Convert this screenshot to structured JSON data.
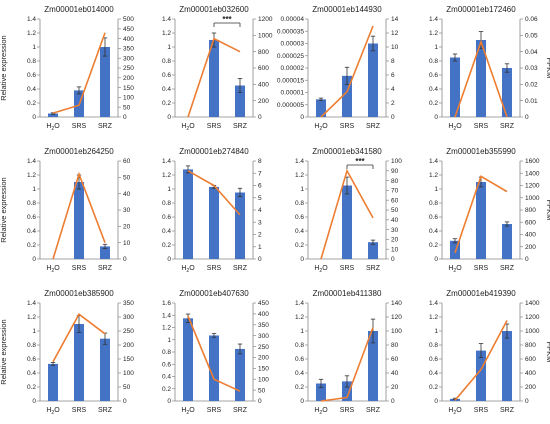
{
  "figure": {
    "categories": [
      "H2O",
      "SRS",
      "SRZ"
    ],
    "left_axis_label": "Relative expression",
    "right_axis_label": "FPKM",
    "significance_label": "***",
    "bar_color": "#4472C4",
    "line_color": "#ED7D31"
  },
  "chart_data": [
    {
      "type": "bar",
      "title": "Zm00001eb014000",
      "ylabel": "Relative expression",
      "y2label": "",
      "ylim": [
        0,
        1.4
      ],
      "yticks": [
        0,
        0.2,
        0.4,
        0.6,
        0.8,
        1,
        1.2,
        1.4
      ],
      "ytick_labels": [
        "0",
        "0.2",
        "0.4",
        "0.6",
        "0.8",
        "1",
        "1.2",
        "1.4"
      ],
      "y2lim": [
        0,
        500
      ],
      "y2ticks": [
        0,
        50,
        100,
        150,
        200,
        250,
        300,
        350,
        400,
        450,
        500
      ],
      "series": [
        {
          "values": [
            0.05,
            0.38,
            1.0
          ],
          "errors": [
            0.01,
            0.05,
            0.13
          ]
        },
        {
          "type": "line",
          "values": [
            20,
            60,
            430
          ]
        }
      ],
      "significance": null
    },
    {
      "type": "bar",
      "title": "Zm00001eb032600",
      "ylabel": "",
      "y2label": "",
      "ylim": [
        0,
        1.4
      ],
      "yticks": [
        0,
        0.2,
        0.4,
        0.6,
        0.8,
        1,
        1.2,
        1.4
      ],
      "ytick_labels": [
        "0",
        "0.2",
        "0.4",
        "0.6",
        "0.8",
        "1",
        "1.2",
        "1.4"
      ],
      "y2lim": [
        0,
        1200
      ],
      "y2ticks": [
        0,
        200,
        400,
        600,
        800,
        1000,
        1200
      ],
      "series": [
        {
          "values": [
            0,
            1.1,
            0.45
          ],
          "errors": [
            0,
            0.1,
            0.1
          ]
        },
        {
          "type": "line",
          "values": [
            0,
            960,
            800
          ]
        }
      ],
      "significance": {
        "from": 1,
        "to": 2,
        "label": "***"
      }
    },
    {
      "type": "bar",
      "title": "Zm00001eb144930",
      "ylabel": "",
      "y2label": "",
      "ylim": [
        0,
        4e-05
      ],
      "yticks": [
        0,
        5e-06,
        1e-05,
        1.5e-05,
        2e-05,
        2.5e-05,
        3e-05,
        3.5e-05,
        4e-05
      ],
      "ytick_labels": [
        "0",
        "0.000005",
        "0.00001",
        "0.000015",
        "0.00002",
        "0.000025",
        "0.00003",
        "0.000035",
        "0.00004"
      ],
      "y2lim": [
        0,
        14
      ],
      "y2ticks": [
        0,
        2,
        4,
        6,
        8,
        10,
        12,
        14
      ],
      "series": [
        {
          "values": [
            7.2e-06,
            1.68e-05,
            3e-05
          ],
          "errors": [
            5e-07,
            3.5e-06,
            3e-06
          ]
        },
        {
          "type": "line",
          "values": [
            0,
            3.6,
            13
          ]
        }
      ],
      "significance": null
    },
    {
      "type": "bar",
      "title": "Zm00001eb172460",
      "ylabel": "",
      "y2label": "FPKM",
      "ylim": [
        0,
        1.4
      ],
      "yticks": [
        0,
        0.2,
        0.4,
        0.6,
        0.8,
        1,
        1.2,
        1.4
      ],
      "ytick_labels": [
        "0",
        "0.2",
        "0.4",
        "0.6",
        "0.8",
        "1",
        "1.2",
        "1.4"
      ],
      "y2lim": [
        0,
        0.06
      ],
      "y2ticks": [
        0,
        0.01,
        0.02,
        0.03,
        0.04,
        0.05,
        0.06
      ],
      "series": [
        {
          "values": [
            0.85,
            1.1,
            0.7
          ],
          "errors": [
            0.05,
            0.12,
            0.06
          ]
        },
        {
          "type": "line",
          "values": [
            0,
            0.046,
            0
          ]
        }
      ],
      "significance": null
    },
    {
      "type": "bar",
      "title": "Zm00001eb264250",
      "ylabel": "Relative expression",
      "y2label": "",
      "ylim": [
        0,
        1.4
      ],
      "yticks": [
        0,
        0.2,
        0.4,
        0.6,
        0.8,
        1,
        1.2,
        1.4
      ],
      "ytick_labels": [
        "0",
        "0.2",
        "0.4",
        "0.6",
        "0.8",
        "1",
        "1.2",
        "1.4"
      ],
      "y2lim": [
        0,
        60
      ],
      "y2ticks": [
        0,
        10,
        20,
        30,
        40,
        50,
        60
      ],
      "series": [
        {
          "values": [
            0,
            1.1,
            0.18
          ],
          "errors": [
            0,
            0.1,
            0.03
          ]
        },
        {
          "type": "line",
          "values": [
            0,
            52,
            10
          ]
        }
      ],
      "significance": null
    },
    {
      "type": "bar",
      "title": "Zm00001eb274840",
      "ylabel": "",
      "y2label": "",
      "ylim": [
        0,
        1.4
      ],
      "yticks": [
        0,
        0.2,
        0.4,
        0.6,
        0.8,
        1,
        1.2,
        1.4
      ],
      "ytick_labels": [
        "0",
        "0.2",
        "0.4",
        "0.6",
        "0.8",
        "1",
        "1.2",
        "1.4"
      ],
      "y2lim": [
        0,
        8
      ],
      "y2ticks": [
        0,
        1,
        2,
        3,
        4,
        5,
        6,
        7,
        8
      ],
      "series": [
        {
          "values": [
            1.28,
            1.03,
            0.95
          ],
          "errors": [
            0.05,
            0.02,
            0.06
          ]
        },
        {
          "type": "line",
          "values": [
            7.2,
            6.0,
            3.6
          ]
        }
      ],
      "significance": null
    },
    {
      "type": "bar",
      "title": "Zm00001eb341580",
      "ylabel": "",
      "y2label": "",
      "ylim": [
        0,
        1.4
      ],
      "yticks": [
        0,
        0.2,
        0.4,
        0.6,
        0.8,
        1,
        1.2,
        1.4
      ],
      "ytick_labels": [
        "0",
        "0.2",
        "0.4",
        "0.6",
        "0.8",
        "1",
        "1.2",
        "1.4"
      ],
      "y2lim": [
        0,
        100
      ],
      "y2ticks": [
        0,
        10,
        20,
        30,
        40,
        50,
        60,
        70,
        80,
        90,
        100
      ],
      "series": [
        {
          "values": [
            0,
            1.05,
            0.24
          ],
          "errors": [
            0,
            0.12,
            0.03
          ]
        },
        {
          "type": "line",
          "values": [
            0,
            90,
            42
          ]
        }
      ],
      "significance": {
        "from": 1,
        "to": 2,
        "label": "***"
      }
    },
    {
      "type": "bar",
      "title": "Zm00001eb355990",
      "ylabel": "",
      "y2label": "FPKM",
      "ylim": [
        0,
        1.4
      ],
      "yticks": [
        0,
        0.2,
        0.4,
        0.6,
        0.8,
        1,
        1.2,
        1.4
      ],
      "ytick_labels": [
        "0",
        "0.2",
        "0.4",
        "0.6",
        "0.8",
        "1",
        "1.2",
        "1.4"
      ],
      "y2lim": [
        0,
        1600
      ],
      "y2ticks": [
        0,
        200,
        400,
        600,
        800,
        1000,
        1200,
        1400,
        1600
      ],
      "series": [
        {
          "values": [
            0.26,
            1.1,
            0.5
          ],
          "errors": [
            0.03,
            0.07,
            0.03
          ]
        },
        {
          "type": "line",
          "values": [
            100,
            1350,
            1100
          ]
        }
      ],
      "significance": null
    },
    {
      "type": "bar",
      "title": "Zm00001eb385900",
      "ylabel": "Relative expression",
      "y2label": "",
      "ylim": [
        0,
        1.4
      ],
      "yticks": [
        0,
        0.2,
        0.4,
        0.6,
        0.8,
        1,
        1.2,
        1.4
      ],
      "ytick_labels": [
        "0",
        "0.2",
        "0.4",
        "0.6",
        "0.8",
        "1",
        "1.2",
        "1.4"
      ],
      "y2lim": [
        0,
        350
      ],
      "y2ticks": [
        0,
        50,
        100,
        150,
        200,
        250,
        300,
        350
      ],
      "series": [
        {
          "values": [
            0.53,
            1.1,
            0.89
          ],
          "errors": [
            0.02,
            0.12,
            0.08
          ]
        },
        {
          "type": "line",
          "values": [
            140,
            310,
            240
          ]
        }
      ],
      "significance": null
    },
    {
      "type": "bar",
      "title": "Zm00001eb407630",
      "ylabel": "",
      "y2label": "",
      "ylim": [
        0,
        1.6
      ],
      "yticks": [
        0,
        0.2,
        0.4,
        0.6,
        0.8,
        1,
        1.2,
        1.4,
        1.6
      ],
      "ytick_labels": [
        "0",
        "0.2",
        "0.4",
        "0.6",
        "0.8",
        "1",
        "1.2",
        "1.4",
        "1.6"
      ],
      "y2lim": [
        0,
        450
      ],
      "y2ticks": [
        0,
        50,
        100,
        150,
        200,
        250,
        300,
        350,
        400,
        450
      ],
      "series": [
        {
          "values": [
            1.35,
            1.07,
            0.85
          ],
          "errors": [
            0.07,
            0.03,
            0.08
          ]
        },
        {
          "type": "line",
          "values": [
            390,
            100,
            45
          ]
        }
      ],
      "significance": null
    },
    {
      "type": "bar",
      "title": "Zm00001eb411380",
      "ylabel": "",
      "y2label": "",
      "ylim": [
        0,
        1.4
      ],
      "yticks": [
        0,
        0.2,
        0.4,
        0.6,
        0.8,
        1,
        1.2,
        1.4
      ],
      "ytick_labels": [
        "0",
        "0.2",
        "0.4",
        "0.6",
        "0.8",
        "1",
        "1.2",
        "1.4"
      ],
      "y2lim": [
        0,
        140
      ],
      "y2ticks": [
        0,
        20,
        40,
        60,
        80,
        100,
        120,
        140
      ],
      "series": [
        {
          "values": [
            0.25,
            0.28,
            1.0
          ],
          "errors": [
            0.06,
            0.08,
            0.17
          ]
        },
        {
          "type": "line",
          "values": [
            0,
            5,
            105
          ]
        }
      ],
      "significance": null
    },
    {
      "type": "bar",
      "title": "Zm00001eb419390",
      "ylabel": "",
      "y2label": "FPKM",
      "ylim": [
        0,
        1.4
      ],
      "yticks": [
        0,
        0.2,
        0.4,
        0.6,
        0.8,
        1,
        1.2,
        1.4
      ],
      "ytick_labels": [
        "0",
        "0.2",
        "0.4",
        "0.6",
        "0.8",
        "1",
        "1.2",
        "1.4"
      ],
      "y2lim": [
        0,
        1400
      ],
      "y2ticks": [
        0,
        200,
        400,
        600,
        800,
        1000,
        1200,
        1400
      ],
      "series": [
        {
          "values": [
            0.03,
            0.72,
            1.0
          ],
          "errors": [
            0.01,
            0.1,
            0.1
          ]
        },
        {
          "type": "line",
          "values": [
            10,
            450,
            1150
          ]
        }
      ],
      "significance": null
    }
  ]
}
